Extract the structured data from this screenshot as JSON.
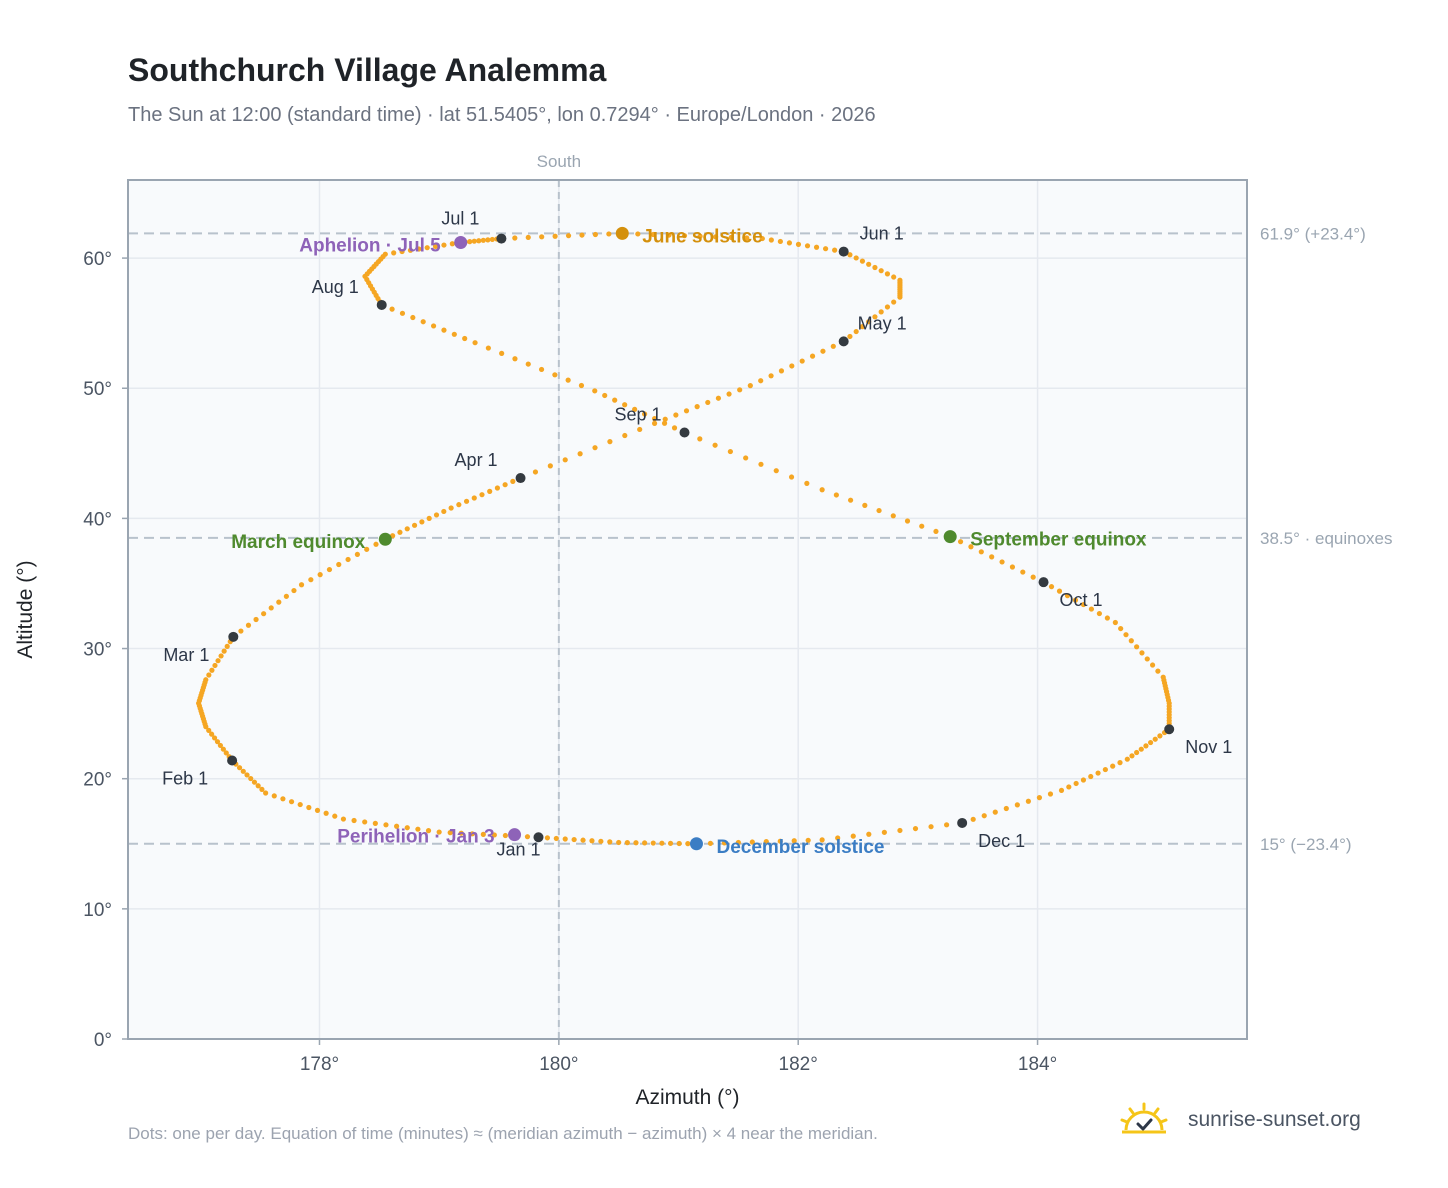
{
  "title": "Southchurch Village Analemma",
  "subtitle": "The Sun at 12:00 (standard time) · lat 51.5405°, lon 0.7294° · Europe/London · 2026",
  "footnote": "Dots: one per day. Equation of time (minutes) ≈ (meridian azimuth − azimuth) × 4 near the meridian.",
  "brand": {
    "name": "sunrise-sunset.org",
    "icon": "sun-logo-icon"
  },
  "colors": {
    "path": "#f5a623",
    "month_marker": "#343a40",
    "june_solstice": "#d4900c",
    "december_solstice": "#3b7dc4",
    "equinox": "#4f8a2e",
    "apsis": "#8e63b8",
    "plot_bg": "#f8fafc",
    "grid": "#e5e9ef",
    "reference_line": "#b8c2cc"
  },
  "chart_data": {
    "type": "scatter",
    "xlabel": "Azimuth (°)",
    "ylabel": "Altitude (°)",
    "xlim": [
      176.4,
      185.75
    ],
    "ylim": [
      0,
      66
    ],
    "xticks": [
      178,
      180,
      182,
      184
    ],
    "xtick_labels": [
      "178°",
      "180°",
      "182°",
      "184°"
    ],
    "yticks": [
      0,
      10,
      20,
      30,
      40,
      50,
      60
    ],
    "ytick_labels": [
      "0°",
      "10°",
      "20°",
      "30°",
      "40°",
      "50°",
      "60°"
    ],
    "grid": true,
    "meridian": {
      "x": 180,
      "label": "South"
    },
    "reference_lines": [
      {
        "y": 61.9,
        "label": "61.9° (+23.4°)"
      },
      {
        "y": 38.5,
        "label": "38.5° · equinoxes"
      },
      {
        "y": 15,
        "label": "15° (−23.4°)"
      }
    ],
    "series": [
      {
        "description_of_marks": "daily",
        "points": [
          [
            179.83,
            15.5
          ],
          [
            179.0,
            15.9
          ],
          [
            178.2,
            16.9
          ],
          [
            177.55,
            18.9
          ],
          [
            177.27,
            21.4
          ],
          [
            177.05,
            24.0
          ],
          [
            176.99,
            25.8
          ],
          [
            177.05,
            27.6
          ],
          [
            177.28,
            30.9
          ],
          [
            177.85,
            34.9
          ],
          [
            178.55,
            38.4
          ],
          [
            179.1,
            40.8
          ],
          [
            179.68,
            43.1
          ],
          [
            180.8,
            47.3
          ],
          [
            181.6,
            50.2
          ],
          [
            182.38,
            53.6
          ],
          [
            182.85,
            57.0
          ],
          [
            182.85,
            58.3
          ],
          [
            182.38,
            60.5
          ],
          [
            181.7,
            61.5
          ],
          [
            180.53,
            61.9
          ],
          [
            179.52,
            61.5
          ],
          [
            179.18,
            61.2
          ],
          [
            178.55,
            60.3
          ],
          [
            178.38,
            58.6
          ],
          [
            178.52,
            56.4
          ],
          [
            179.3,
            53.5
          ],
          [
            180.3,
            49.8
          ],
          [
            181.05,
            46.6
          ],
          [
            182.2,
            42.2
          ],
          [
            183.27,
            38.6
          ],
          [
            184.05,
            35.1
          ],
          [
            184.65,
            32.0
          ],
          [
            185.05,
            27.8
          ],
          [
            185.1,
            25.8
          ],
          [
            185.1,
            23.8
          ],
          [
            184.75,
            21.5
          ],
          [
            184.2,
            19.1
          ],
          [
            183.37,
            16.6
          ],
          [
            182.2,
            15.3
          ],
          [
            181.15,
            15.0
          ],
          [
            180.5,
            15.1
          ],
          [
            179.83,
            15.5
          ]
        ]
      }
    ],
    "month_markers": [
      {
        "label": "Jan 1",
        "x": 179.83,
        "y": 15.5
      },
      {
        "label": "Feb 1",
        "x": 177.27,
        "y": 21.4
      },
      {
        "label": "Mar 1",
        "x": 177.28,
        "y": 30.9
      },
      {
        "label": "Apr 1",
        "x": 179.68,
        "y": 43.1
      },
      {
        "label": "May 1",
        "x": 182.38,
        "y": 53.6
      },
      {
        "label": "Jun 1",
        "x": 182.38,
        "y": 60.5
      },
      {
        "label": "Jul 1",
        "x": 179.52,
        "y": 61.5
      },
      {
        "label": "Aug 1",
        "x": 178.52,
        "y": 56.4
      },
      {
        "label": "Sep 1",
        "x": 181.05,
        "y": 46.6
      },
      {
        "label": "Oct 1",
        "x": 184.05,
        "y": 35.1
      },
      {
        "label": "Nov 1",
        "x": 185.1,
        "y": 23.8
      },
      {
        "label": "Dec 1",
        "x": 183.37,
        "y": 16.6
      }
    ],
    "events": [
      {
        "label": "June solstice",
        "x": 180.53,
        "y": 61.9,
        "color": "june_solstice"
      },
      {
        "label": "December solstice",
        "x": 181.15,
        "y": 15.0,
        "color": "december_solstice"
      },
      {
        "label": "March equinox",
        "x": 178.55,
        "y": 38.4,
        "color": "equinox"
      },
      {
        "label": "September equinox",
        "x": 183.27,
        "y": 38.6,
        "color": "equinox"
      },
      {
        "label": "Aphelion · Jul 5",
        "x": 179.18,
        "y": 61.2,
        "color": "apsis"
      },
      {
        "label": "Perihelion · Jan 3",
        "x": 179.63,
        "y": 15.7,
        "color": "apsis"
      }
    ]
  }
}
